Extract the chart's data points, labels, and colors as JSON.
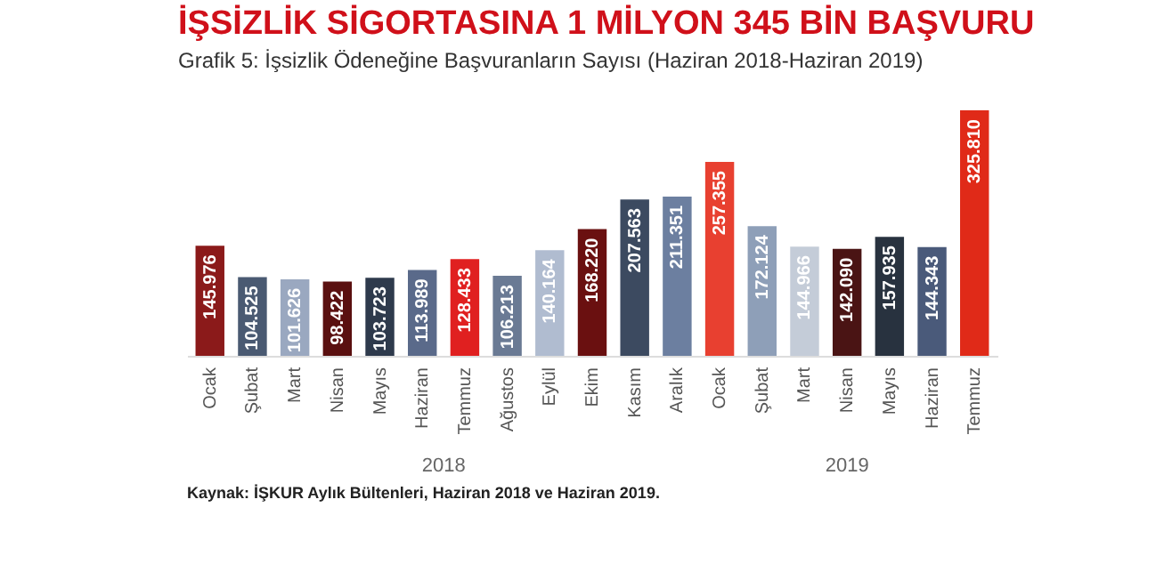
{
  "chart_data": {
    "type": "bar",
    "title": "İŞSİZLİK SİGORTASINA 1 MİLYON 345 BİN BAŞVURU",
    "subtitle": "Grafik 5: İşsizlik Ödeneğine Başvuranların Sayısı (Haziran 2018-Haziran 2019)",
    "categories": [
      "Ocak",
      "Şubat",
      "Mart",
      "Nisan",
      "Mayıs",
      "Haziran",
      "Temmuz",
      "Ağustos",
      "Eylül",
      "Ekim",
      "Kasım",
      "Aralık",
      "Ocak",
      "Şubat",
      "Mart",
      "Nisan",
      "Mayıs",
      "Haziran",
      "Temmuz"
    ],
    "values": [
      145976,
      104525,
      101626,
      98422,
      103723,
      113989,
      128433,
      106213,
      140164,
      168220,
      207563,
      211351,
      257355,
      172124,
      144966,
      142090,
      157935,
      144343,
      325810
    ],
    "value_labels": [
      "145.976",
      "104.525",
      "101.626",
      "98.422",
      "103.723",
      "113.989",
      "128.433",
      "106.213",
      "140.164",
      "168.220",
      "207.563",
      "211.351",
      "257.355",
      "172.124",
      "144.966",
      "142.090",
      "157.935",
      "144.343",
      "325.810"
    ],
    "colors": [
      "#8b1a1a",
      "#4a5a72",
      "#9aa8c0",
      "#5a1010",
      "#2e3a4c",
      "#5a6a8a",
      "#e02020",
      "#6a7a94",
      "#b0bcd0",
      "#6a1010",
      "#3c4a60",
      "#6c7fa0",
      "#e84030",
      "#8e9fb8",
      "#c4ccd8",
      "#4a1414",
      "#28323f",
      "#4a5a7a",
      "#e02a18"
    ],
    "annotations": [
      "2018",
      "2019",
      "Kaynak: İŞKUR Aylık Bültenleri, Haziran 2018 ve Haziran 2019."
    ],
    "grid": false
  }
}
